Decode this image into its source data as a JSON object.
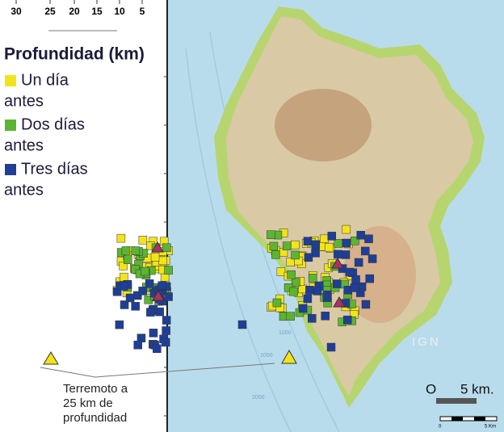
{
  "depth_axis": {
    "label": "Profundidad (km)",
    "ticks": [
      30,
      25,
      20,
      15,
      10,
      5
    ]
  },
  "legend": [
    {
      "label": [
        "Un día",
        "antes"
      ],
      "color": "#f2e41a"
    },
    {
      "label": [
        "Dos días",
        "antes"
      ],
      "color": "#5cb531"
    },
    {
      "label": [
        "Tres días",
        "antes"
      ],
      "color": "#1f3f96"
    }
  ],
  "annotation": [
    "Terremoto a",
    "25 km de",
    "profundidad"
  ],
  "scale": {
    "start": "O",
    "end": "5 km."
  },
  "map": {
    "contour_labels": [
      "1000",
      "1000",
      "2000"
    ],
    "watermark": "IGN",
    "scale_small": [
      "0",
      "5 Km"
    ]
  }
}
